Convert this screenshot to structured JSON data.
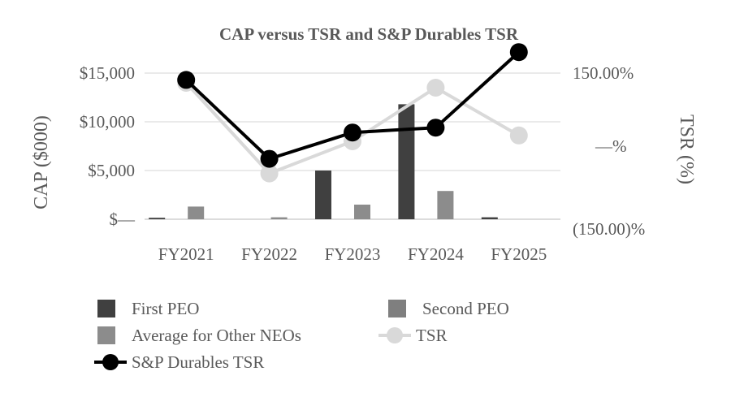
{
  "chart_data": {
    "type": "bar",
    "title": "CAP versus TSR and S&P Durables TSR",
    "categories": [
      "FY2021",
      "FY2022",
      "FY2023",
      "FY2024",
      "FY2025"
    ],
    "ylabel": "CAP ($000)",
    "y2label": "TSR (%)",
    "ylim": [
      0,
      15000
    ],
    "y2lim": [
      -150,
      150
    ],
    "y_ticks": [
      {
        "value": 0,
        "label": "$—"
      },
      {
        "value": 5000,
        "label": "$5,000"
      },
      {
        "value": 10000,
        "label": "$10,000"
      },
      {
        "value": 15000,
        "label": "$15,000"
      }
    ],
    "y2_ticks": [
      {
        "value": -150,
        "label": "(150.00)%"
      },
      {
        "value": 0,
        "label": "—%"
      },
      {
        "value": 150,
        "label": "150.00%"
      }
    ],
    "bar_series": [
      {
        "name": "First PEO",
        "color": "#404040",
        "values": [
          150,
          0,
          5000,
          11800,
          200
        ]
      },
      {
        "name": "Second PEO",
        "color": "#7f7f7f",
        "values": [
          0,
          0,
          0,
          0,
          0
        ]
      },
      {
        "name": "Average for Other NEOs",
        "color": "#8c8c8c",
        "values": [
          1300,
          200,
          1500,
          2900,
          0
        ]
      }
    ],
    "line_series": [
      {
        "name": "TSR",
        "color": "#d9d9d9",
        "values": [
          130,
          -56,
          10,
          120,
          22
        ]
      },
      {
        "name": "S&P Durables TSR",
        "color": "#000000",
        "values": [
          136,
          -26,
          28,
          38,
          193
        ]
      }
    ],
    "grid": true,
    "legend_position": "bottom"
  }
}
